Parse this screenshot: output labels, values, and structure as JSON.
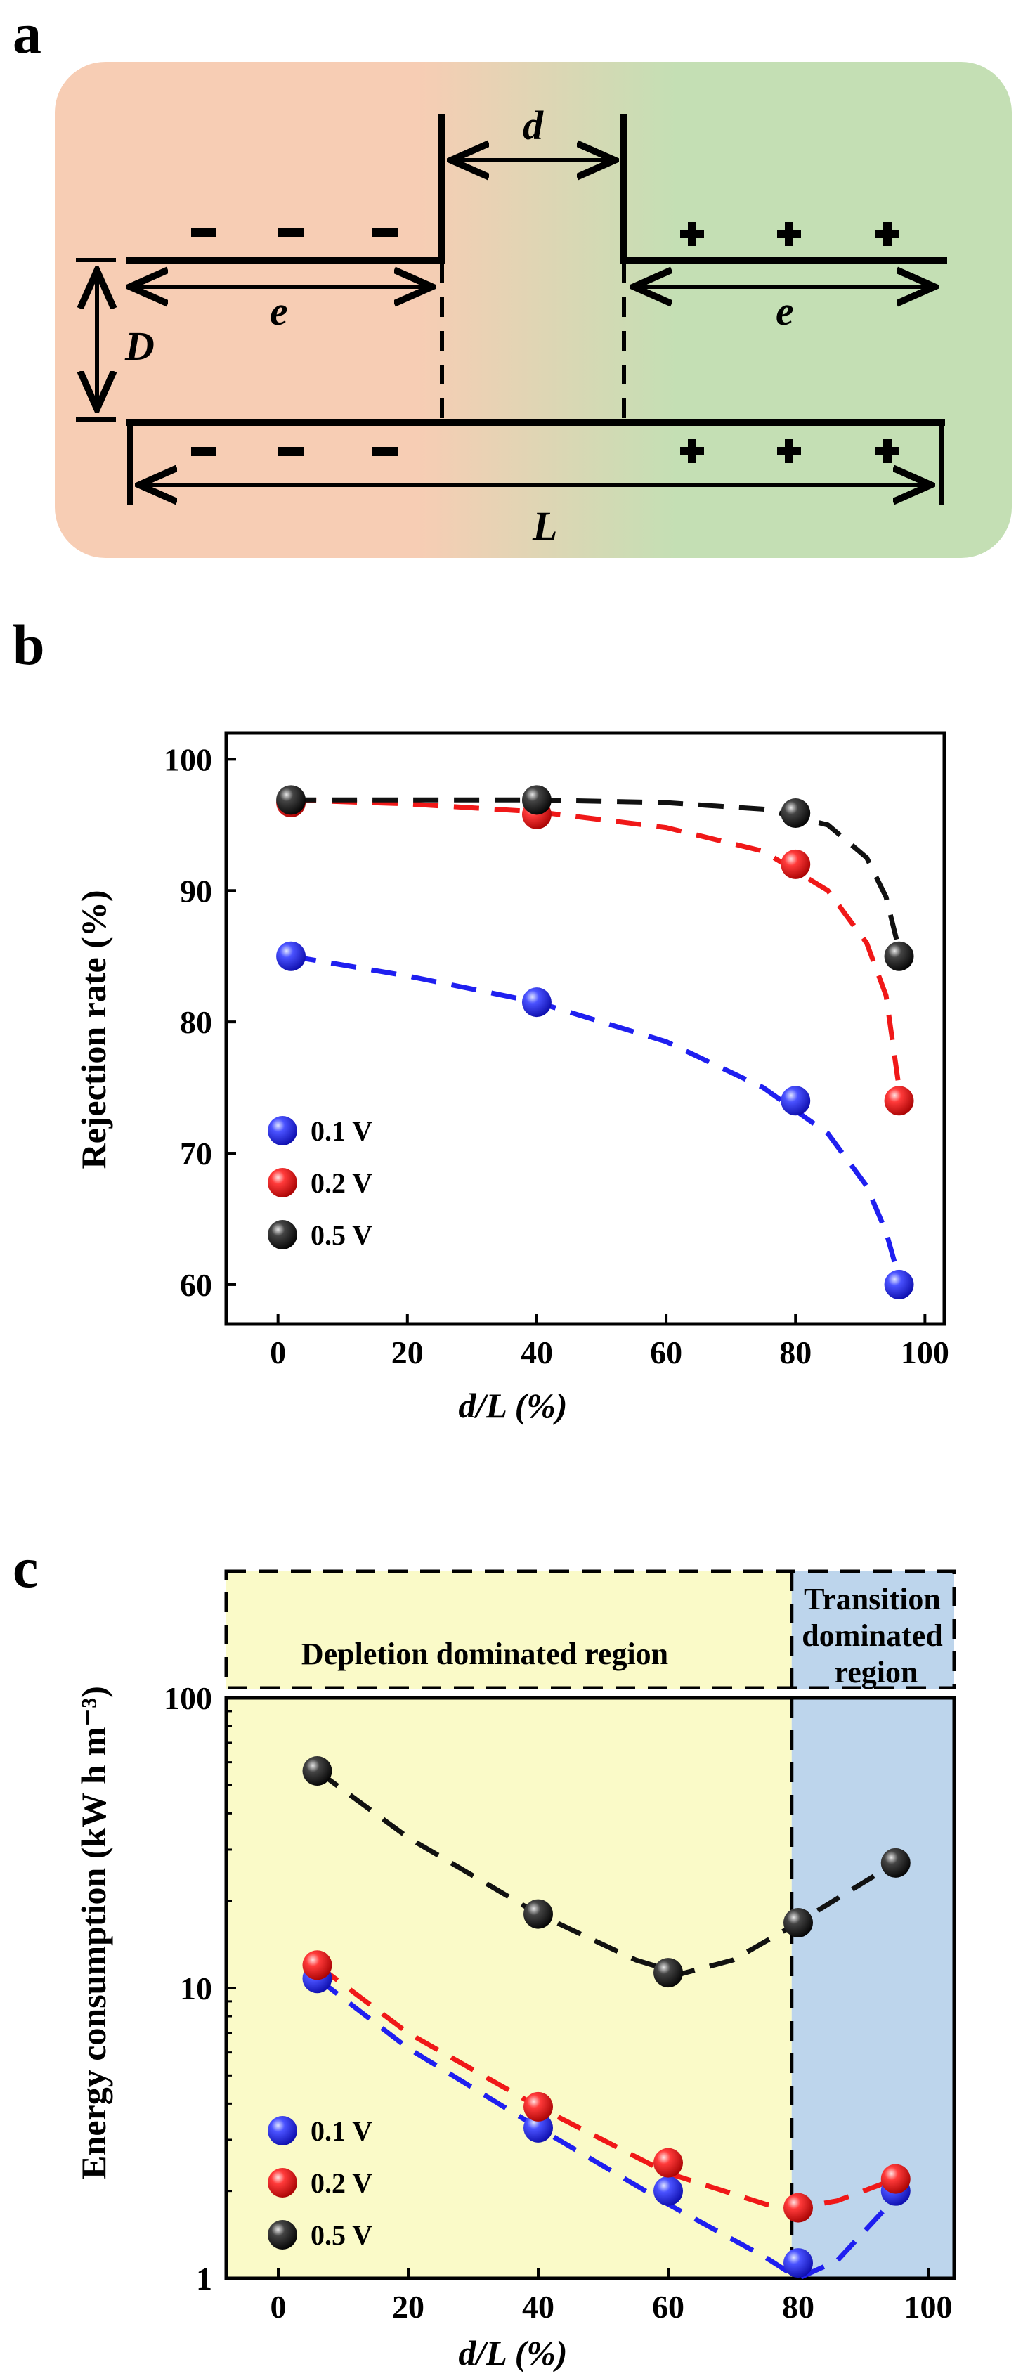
{
  "panels": {
    "a": {
      "label": "a",
      "symbols": {
        "d": "d",
        "D": "D",
        "e_left": "e",
        "e_right": "e",
        "L": "L"
      },
      "charges": {
        "negative": "-",
        "positive": "+"
      },
      "colors": {
        "left_bg": "#f7cdb4",
        "right_bg": "#c4dfb4"
      }
    },
    "b": {
      "label": "b"
    },
    "c": {
      "label": "c"
    }
  },
  "chart_data": [
    {
      "id": "b",
      "type": "scatter",
      "title": "",
      "xlabel": "d/L (%)",
      "ylabel": "Rejection rate (%)",
      "xlim": [
        -8,
        103
      ],
      "ylim": [
        57,
        102
      ],
      "xticks": [
        0,
        20,
        40,
        60,
        80,
        100
      ],
      "yticks": [
        60,
        70,
        80,
        90,
        100
      ],
      "legend_position": "bottom-left",
      "series": [
        {
          "name": "0.1 V",
          "color": "#1f1ff0",
          "x": [
            2,
            40,
            80,
            96
          ],
          "y": [
            85,
            81.5,
            74,
            60
          ]
        },
        {
          "name": "0.2 V",
          "color": "#f01818",
          "x": [
            2,
            40,
            80,
            96
          ],
          "y": [
            96.7,
            95.8,
            92,
            74
          ]
        },
        {
          "name": "0.5 V",
          "color": "#111111",
          "x": [
            2,
            40,
            80,
            96
          ],
          "y": [
            96.9,
            96.9,
            95.9,
            85
          ]
        }
      ],
      "fit_curves": [
        {
          "name": "0.1 V",
          "color": "#1f1ff0",
          "x": [
            2,
            20,
            40,
            60,
            75,
            85,
            91,
            94,
            96
          ],
          "y": [
            85,
            83.5,
            81.5,
            78.5,
            75,
            71.5,
            67.5,
            64,
            60.5
          ]
        },
        {
          "name": "0.2 V",
          "color": "#f01818",
          "x": [
            2,
            20,
            40,
            60,
            75,
            85,
            91,
            94,
            96
          ],
          "y": [
            96.9,
            96.6,
            96,
            94.8,
            93,
            90,
            86,
            82,
            75
          ]
        },
        {
          "name": "0.5 V",
          "color": "#111111",
          "x": [
            2,
            20,
            40,
            60,
            75,
            85,
            91,
            94,
            96
          ],
          "y": [
            96.9,
            96.9,
            96.9,
            96.7,
            96.2,
            95,
            92.5,
            89.5,
            85.5
          ]
        }
      ]
    },
    {
      "id": "c",
      "type": "scatter",
      "yscale": "log",
      "title": "",
      "xlabel": "d/L (%)",
      "ylabel": "Energy consumption (kW h m⁻³)",
      "xlim": [
        -8,
        104
      ],
      "ylim": [
        1,
        100
      ],
      "xticks": [
        0,
        20,
        40,
        60,
        80,
        100
      ],
      "yticks": [
        1,
        10,
        100
      ],
      "legend_position": "bottom-left",
      "regions": [
        {
          "label": "Depletion dominated region",
          "x_range": [
            -8,
            79
          ],
          "color": "#fafac8"
        },
        {
          "label_lines": [
            "Transition",
            "dominated",
            "region"
          ],
          "x_range": [
            79,
            104
          ],
          "color": "#bdd5ec"
        }
      ],
      "boundary_x": 79,
      "series": [
        {
          "name": "0.1 V",
          "color": "#1f1ff0",
          "x": [
            6,
            40,
            60,
            80,
            95
          ],
          "y": [
            10.8,
            3.3,
            2.0,
            1.13,
            2.0
          ]
        },
        {
          "name": "0.2 V",
          "color": "#f01818",
          "x": [
            6,
            40,
            60,
            80,
            95
          ],
          "y": [
            12,
            3.9,
            2.5,
            1.75,
            2.2
          ]
        },
        {
          "name": "0.5 V",
          "color": "#111111",
          "x": [
            6,
            40,
            60,
            80,
            95
          ],
          "y": [
            56,
            18,
            11.3,
            16.8,
            27
          ]
        }
      ],
      "fit_curves": [
        {
          "name": "0.1 V",
          "color": "#1f1ff0",
          "x": [
            6,
            20,
            40,
            60,
            75,
            80,
            86,
            95
          ],
          "y": [
            10.8,
            6.2,
            3.3,
            1.8,
            1.18,
            1.0,
            1.15,
            1.9
          ]
        },
        {
          "name": "0.2 V",
          "color": "#f01818",
          "x": [
            6,
            20,
            40,
            60,
            75,
            80,
            86,
            95
          ],
          "y": [
            12,
            7,
            3.9,
            2.3,
            1.8,
            1.75,
            1.85,
            2.2
          ]
        },
        {
          "name": "0.5 V",
          "color": "#111111",
          "x": [
            6,
            20,
            40,
            55,
            62,
            70,
            80,
            87,
            95
          ],
          "y": [
            56,
            33,
            18,
            12.5,
            11.2,
            12.5,
            16.8,
            21,
            27
          ]
        }
      ]
    }
  ]
}
